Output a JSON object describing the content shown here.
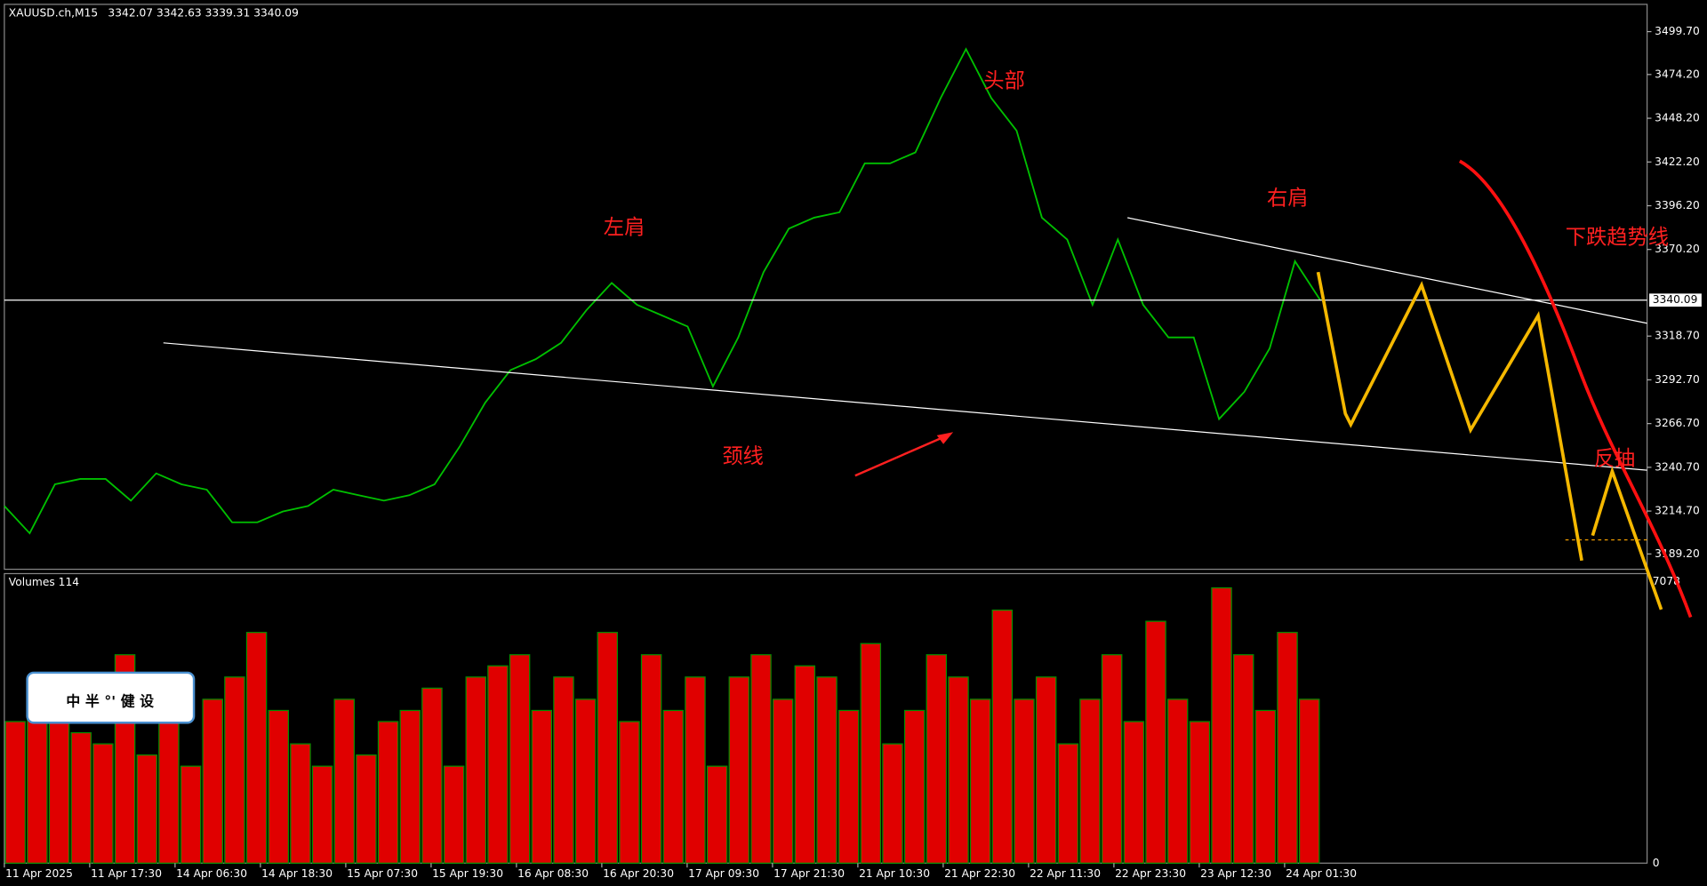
{
  "chart_data": [
    {
      "type": "line",
      "symbol": "XAUUSD.ch,M15",
      "ohlc": [
        3342.07,
        3342.63,
        3339.31,
        3340.09
      ],
      "color": "#00c000",
      "values": [
        3217.7,
        3201.5,
        3230.6,
        3233.8,
        3233.8,
        3220.9,
        3237.1,
        3230.6,
        3227.4,
        3208.0,
        3208.0,
        3214.4,
        3217.7,
        3227.4,
        3224.1,
        3220.9,
        3224.1,
        3230.6,
        3253.2,
        3279.1,
        3298.5,
        3305.0,
        3314.7,
        3334.1,
        3350.3,
        3337.3,
        3330.9,
        3324.4,
        3288.8,
        3317.9,
        3356.7,
        3382.6,
        3389.1,
        3392.3,
        3421.4,
        3421.4,
        3427.9,
        3460.2,
        3489.3,
        3460.2,
        3440.8,
        3389.1,
        3376.1,
        3337.3,
        3376.1,
        3337.3,
        3317.9,
        3317.9,
        3269.4,
        3285.6,
        3311.4,
        3363.2,
        3340.1
      ],
      "ylim": [
        3180.1,
        3515.9
      ],
      "yticks": [
        {
          "value": 3499.7,
          "label": "3499.70"
        },
        {
          "value": 3474.2,
          "label": "3474.20"
        },
        {
          "value": 3448.2,
          "label": "3448.20"
        },
        {
          "value": 3422.2,
          "label": "3422.20"
        },
        {
          "value": 3396.2,
          "label": "3396.20"
        },
        {
          "value": 3370.2,
          "label": "3370.20"
        },
        {
          "value": 3318.7,
          "label": "3318.70"
        },
        {
          "value": 3292.7,
          "label": "3292.70"
        },
        {
          "value": 3266.7,
          "label": "3266.70"
        },
        {
          "value": 3240.7,
          "label": "3240.70"
        },
        {
          "value": 3214.7,
          "label": "3214.70"
        },
        {
          "value": 3189.2,
          "label": "3189.20"
        }
      ],
      "x_labels": [
        "11 Apr 2025",
        "11 Apr 17:30",
        "14 Apr 06:30",
        "14 Apr 18:30",
        "15 Apr 07:30",
        "15 Apr 19:30",
        "16 Apr 08:30",
        "16 Apr 20:30",
        "17 Apr 09:30",
        "17 Apr 21:30",
        "21 Apr 10:30",
        "21 Apr 22:30",
        "22 Apr 11:30",
        "22 Apr 23:30",
        "23 Apr 12:30",
        "24 Apr 01:30"
      ],
      "annotations": [
        "左肩",
        "头部",
        "右肩",
        "颈线",
        "下跌趋势线",
        "反抽"
      ],
      "logo_text": "中 半 °' 健 设"
    },
    {
      "type": "bar",
      "title": "Volumes 114",
      "color": "#e00000",
      "values": [
        3556,
        4116,
        3836,
        3276,
        2996,
        5236,
        2716,
        3556,
        2436,
        4116,
        4676,
        5796,
        3836,
        2996,
        2436,
        4116,
        2716,
        3556,
        3836,
        4396,
        2436,
        4676,
        4956,
        5236,
        3836,
        4676,
        4116,
        5796,
        3556,
        5236,
        3836,
        4676,
        2436,
        4676,
        5236,
        4116,
        4956,
        4676,
        3836,
        5516,
        2996,
        3836,
        5236,
        4676,
        4116,
        6356,
        4116,
        4676,
        2996,
        4116,
        5236,
        3556,
        6076,
        4116,
        3556,
        6916,
        5236,
        3836,
        5796,
        4116
      ],
      "ylim": [
        0,
        7274
      ],
      "yticks": [
        7078,
        0
      ]
    }
  ]
}
